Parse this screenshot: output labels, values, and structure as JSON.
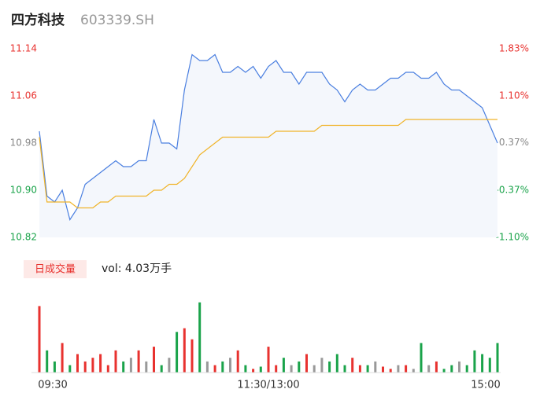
{
  "header": {
    "title": "四方科技",
    "code": "603339.SH"
  },
  "chart_data": [
    {
      "type": "line",
      "x": [
        0,
        4,
        8,
        12,
        16,
        20,
        24,
        28,
        32,
        36,
        40,
        44,
        48,
        52,
        56,
        60,
        64,
        68,
        72,
        76,
        80,
        84,
        88,
        92,
        96,
        100,
        104,
        108,
        112,
        116,
        120,
        124,
        128,
        132,
        136,
        140,
        144,
        148,
        152,
        156,
        160,
        164,
        168,
        172,
        176,
        180,
        184,
        188,
        192,
        196,
        200,
        204,
        208,
        212,
        216,
        220,
        224,
        228,
        232,
        236,
        240
      ],
      "xlim": [
        0,
        240
      ],
      "series": [
        {
          "name": "price",
          "color": "#4a7fe0",
          "values": [
            11.0,
            10.89,
            10.88,
            10.9,
            10.85,
            10.87,
            10.91,
            10.92,
            10.93,
            10.94,
            10.95,
            10.94,
            10.94,
            10.95,
            10.95,
            11.02,
            10.98,
            10.98,
            10.97,
            11.07,
            11.13,
            11.12,
            11.12,
            11.13,
            11.1,
            11.1,
            11.11,
            11.1,
            11.11,
            11.09,
            11.11,
            11.12,
            11.1,
            11.1,
            11.08,
            11.1,
            11.1,
            11.1,
            11.08,
            11.07,
            11.05,
            11.07,
            11.08,
            11.07,
            11.07,
            11.08,
            11.09,
            11.09,
            11.1,
            11.1,
            11.09,
            11.09,
            11.1,
            11.08,
            11.07,
            11.07,
            11.06,
            11.05,
            11.04,
            11.01,
            10.98
          ]
        },
        {
          "name": "average",
          "color": "#f0b429",
          "values": [
            10.99,
            10.88,
            10.88,
            10.88,
            10.88,
            10.87,
            10.87,
            10.87,
            10.88,
            10.88,
            10.89,
            10.89,
            10.89,
            10.89,
            10.89,
            10.9,
            10.9,
            10.91,
            10.91,
            10.92,
            10.94,
            10.96,
            10.97,
            10.98,
            10.99,
            10.99,
            10.99,
            10.99,
            10.99,
            10.99,
            10.99,
            11.0,
            11.0,
            11.0,
            11.0,
            11.0,
            11.0,
            11.01,
            11.01,
            11.01,
            11.01,
            11.01,
            11.01,
            11.01,
            11.01,
            11.01,
            11.01,
            11.01,
            11.02,
            11.02,
            11.02,
            11.02,
            11.02,
            11.02,
            11.02,
            11.02,
            11.02,
            11.02,
            11.02,
            11.02,
            11.02
          ]
        }
      ],
      "ylim": [
        10.82,
        11.14
      ],
      "yticks": [
        10.82,
        {
          "value": 10.9,
          "label": "10.90"
        },
        10.98,
        11.06,
        11.14
      ],
      "y2lim": [
        -1.1,
        1.83
      ],
      "y2ticks": [
        {
          "value": -1.1,
          "label": "-1.10%"
        },
        {
          "value": -0.37,
          "label": "-0.37%"
        },
        {
          "value": 0.37,
          "label": "0.37%"
        },
        {
          "value": 1.1,
          "label": "1.10%"
        },
        {
          "value": 1.83,
          "label": "1.83%"
        }
      ],
      "tick_colors": [
        "#1aa34a",
        "#1aa34a",
        "#888888",
        "#e8322f",
        "#e8322f"
      ],
      "area_color": "#f4f7fc",
      "grid": false
    },
    {
      "type": "bar",
      "title": "日成交量",
      "subtitle": "vol: 4.03万手",
      "x": [
        0,
        4,
        8,
        12,
        16,
        20,
        24,
        28,
        32,
        36,
        40,
        44,
        48,
        52,
        56,
        60,
        64,
        68,
        72,
        76,
        80,
        84,
        88,
        92,
        96,
        100,
        104,
        108,
        112,
        116,
        120,
        124,
        128,
        132,
        136,
        140,
        144,
        148,
        152,
        156,
        160,
        164,
        168,
        172,
        176,
        180,
        184,
        188,
        192,
        196,
        200,
        204,
        208,
        212,
        216,
        220,
        224,
        228,
        232,
        236,
        240
      ],
      "xlim": [
        0,
        240
      ],
      "xticks": [
        {
          "value": 0,
          "label": "09:30"
        },
        {
          "value": 120,
          "label": "11:30/13:00"
        },
        {
          "value": 240,
          "label": "15:00"
        }
      ],
      "values": [
        90,
        30,
        15,
        40,
        10,
        25,
        15,
        20,
        25,
        10,
        30,
        15,
        20,
        30,
        15,
        35,
        10,
        20,
        55,
        60,
        45,
        95,
        15,
        10,
        15,
        20,
        30,
        10,
        5,
        8,
        35,
        10,
        20,
        10,
        15,
        25,
        10,
        20,
        15,
        25,
        10,
        20,
        10,
        10,
        15,
        8,
        5,
        10,
        10,
        5,
        40,
        10,
        15,
        5,
        10,
        15,
        10,
        30,
        25,
        20,
        40
      ],
      "ylim": [
        0,
        100
      ],
      "up_color": "#e8322f",
      "down_color": "#1aa34a",
      "flat_color": "#999999"
    }
  ]
}
